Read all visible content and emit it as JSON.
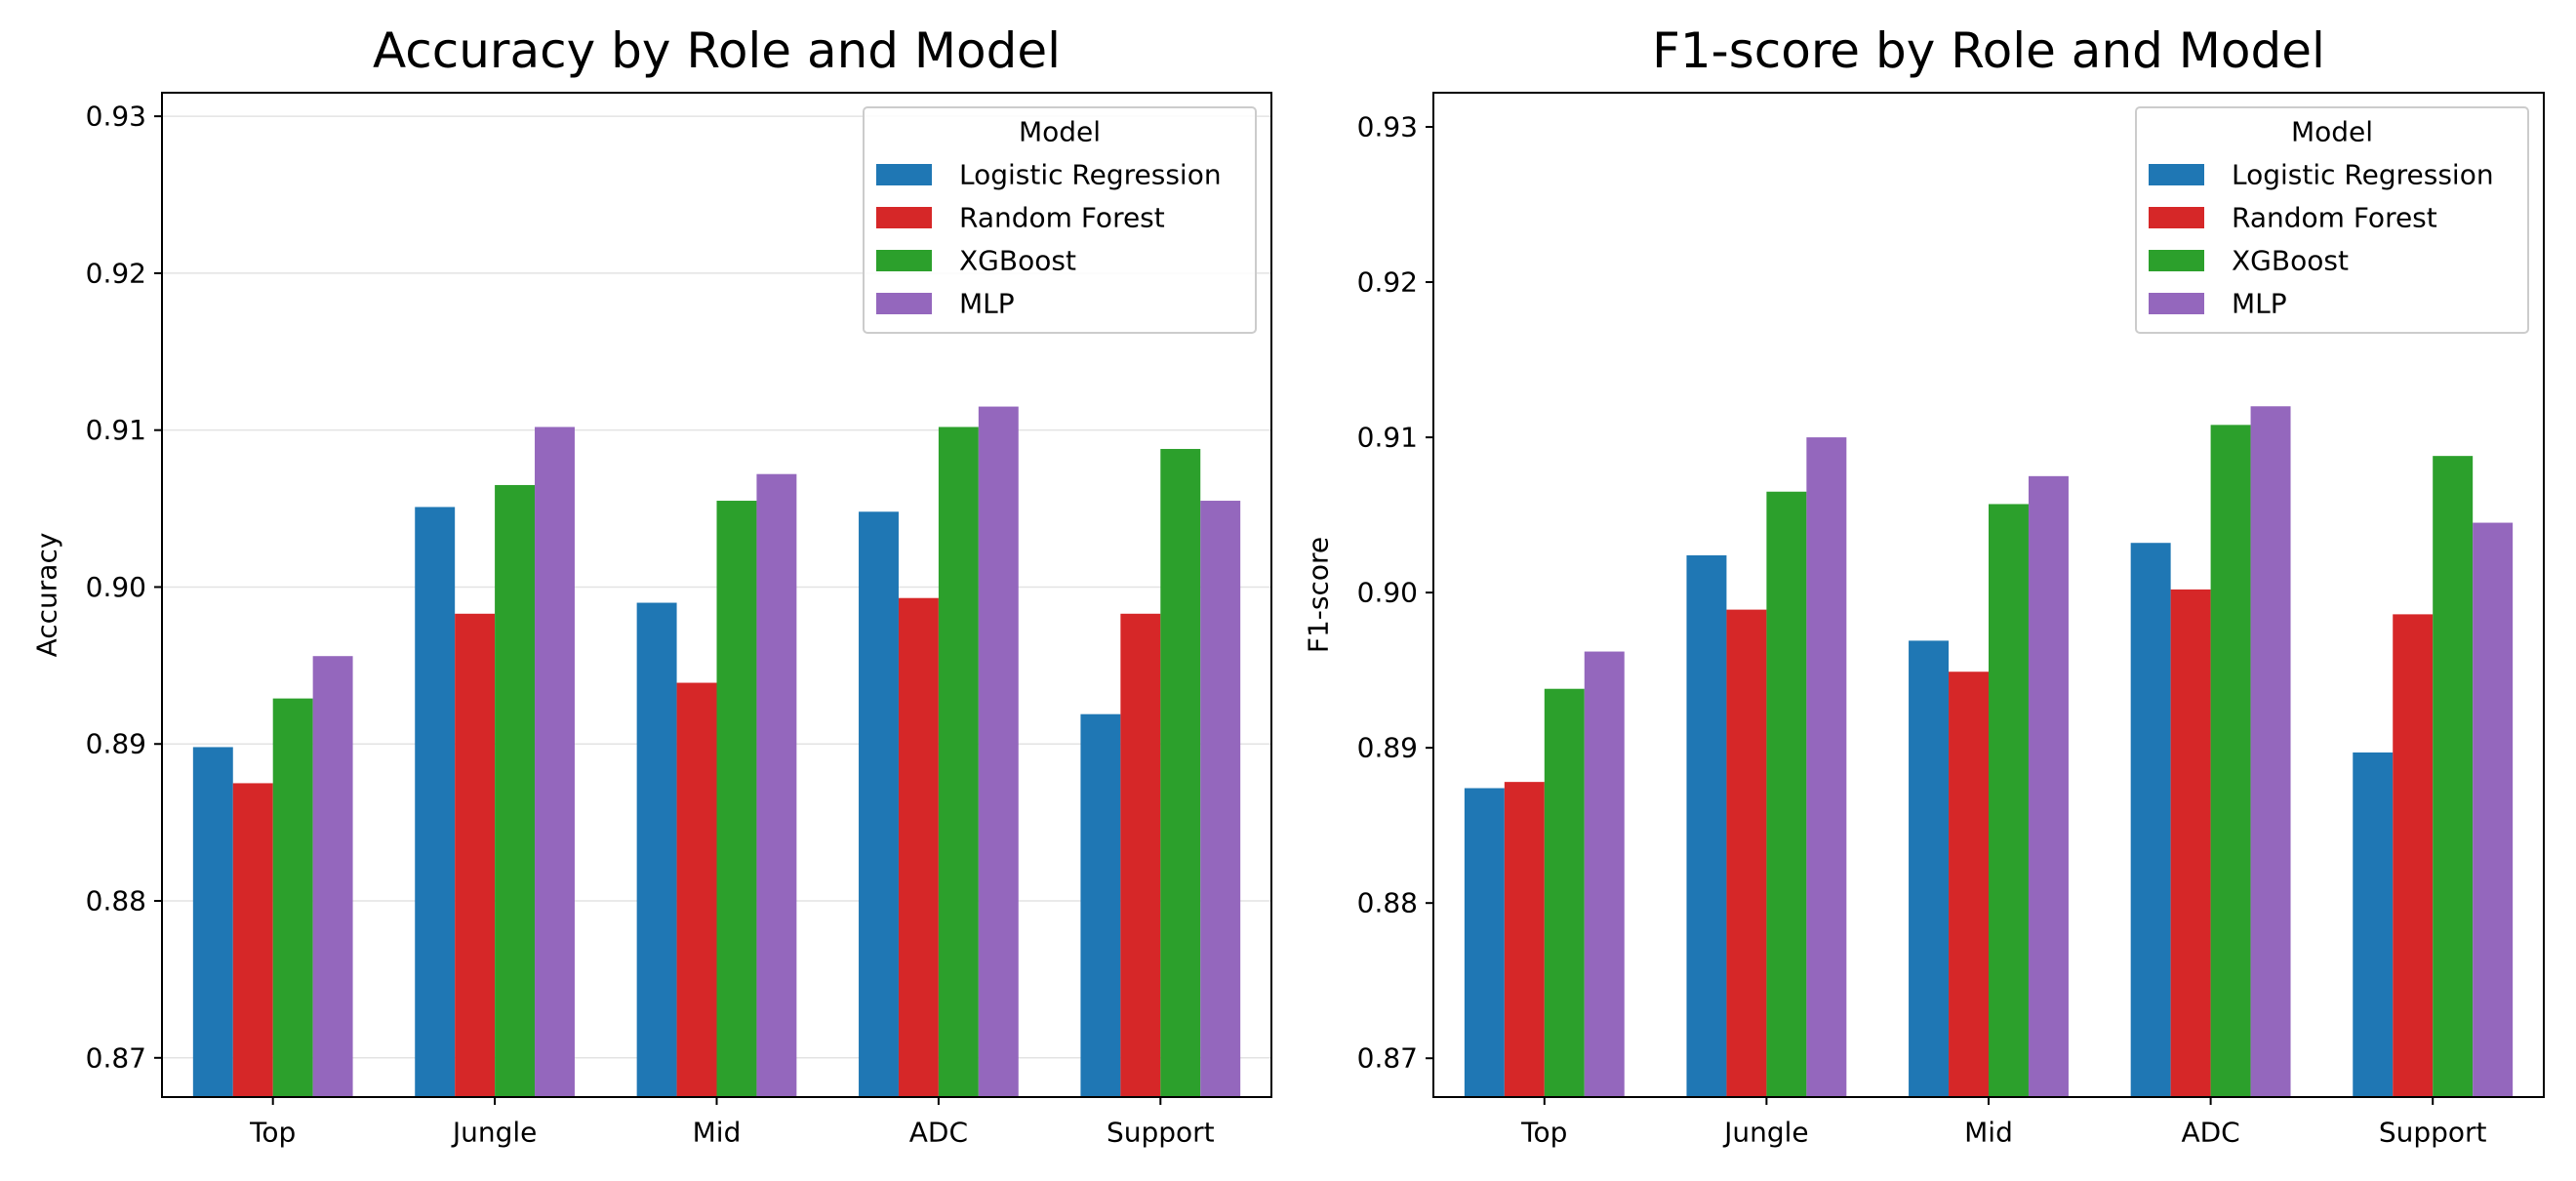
{
  "chart_data": [
    {
      "type": "bar",
      "title": "Accuracy by Role and Model",
      "xlabel": "",
      "ylabel": "Accuracy",
      "categories": [
        "Top",
        "Jungle",
        "Mid",
        "ADC",
        "Support"
      ],
      "ylim": [
        0.8675,
        0.9315
      ],
      "yticks": [
        0.87,
        0.88,
        0.89,
        0.9,
        0.91,
        0.92,
        0.93
      ],
      "ytick_labels": [
        "0.87",
        "0.88",
        "0.89",
        "0.90",
        "0.91",
        "0.92",
        "0.93"
      ],
      "grid": true,
      "legend": {
        "title": "Model",
        "position": "top-right"
      },
      "series": [
        {
          "name": "Logistic Regression",
          "color": "#1f77b4",
          "values": [
            0.8898,
            0.9051,
            0.899,
            0.9048,
            0.8919
          ]
        },
        {
          "name": "Random Forest",
          "color": "#d62728",
          "values": [
            0.8875,
            0.8983,
            0.8939,
            0.8993,
            0.8983
          ]
        },
        {
          "name": "XGBoost",
          "color": "#2ca02c",
          "values": [
            0.8929,
            0.9065,
            0.9055,
            0.9102,
            0.9088
          ]
        },
        {
          "name": "MLP",
          "color": "#9467bd",
          "values": [
            0.8956,
            0.9102,
            0.9072,
            0.9115,
            0.9055
          ]
        }
      ]
    },
    {
      "type": "bar",
      "title": "F1-score by Role and Model",
      "xlabel": "",
      "ylabel": "F1-score",
      "categories": [
        "Top",
        "Jungle",
        "Mid",
        "ADC",
        "Support"
      ],
      "ylim": [
        0.8675,
        0.9322
      ],
      "yticks": [
        0.87,
        0.88,
        0.89,
        0.9,
        0.91,
        0.92,
        0.93
      ],
      "ytick_labels": [
        "0.87",
        "0.88",
        "0.89",
        "0.90",
        "0.91",
        "0.92",
        "0.93"
      ],
      "grid": false,
      "legend": {
        "title": "Model",
        "position": "top-right"
      },
      "series": [
        {
          "name": "Logistic Regression",
          "color": "#1f77b4",
          "values": [
            0.8874,
            0.9024,
            0.8969,
            0.9032,
            0.8897
          ]
        },
        {
          "name": "Random Forest",
          "color": "#d62728",
          "values": [
            0.8878,
            0.8989,
            0.8949,
            0.9002,
            0.8986
          ]
        },
        {
          "name": "XGBoost",
          "color": "#2ca02c",
          "values": [
            0.8938,
            0.9065,
            0.9057,
            0.9108,
            0.9088
          ]
        },
        {
          "name": "MLP",
          "color": "#9467bd",
          "values": [
            0.8962,
            0.91,
            0.9075,
            0.912,
            0.9045
          ]
        }
      ]
    }
  ]
}
